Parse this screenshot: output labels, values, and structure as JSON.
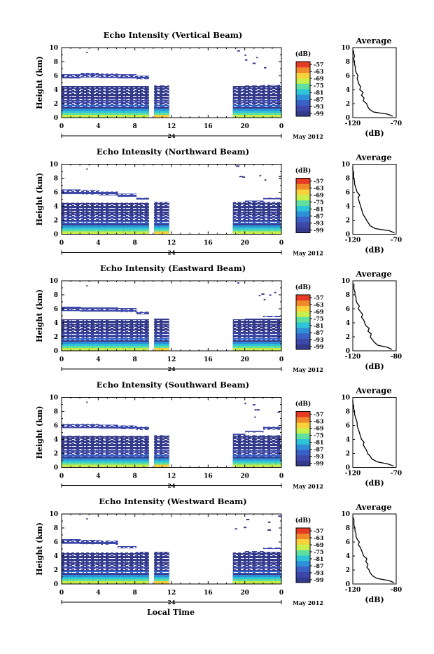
{
  "figure": {
    "xlabel": "Local Time",
    "date_label": "May 2012",
    "day_marker": "24",
    "avg_title": "Average",
    "avg_xlabel": "(dB)",
    "cb_unit": "(dB)",
    "colors": {
      "low": "#3a3f9e",
      "scale": [
        "#353b8c",
        "#3d48a8",
        "#3a62c6",
        "#2f8fd8",
        "#2ec4d8",
        "#5fe0a0",
        "#c8ef4c",
        "#f7d23a",
        "#f08a2a",
        "#e63b24"
      ]
    }
  },
  "chart_data": [
    {
      "type": "heatmap",
      "title": "Echo Intensity (Vertical Beam)",
      "ylabel": "Height (km)",
      "x_ticks": [
        "0",
        "4",
        "8",
        "12",
        "16",
        "20",
        "0"
      ],
      "y_ticks": [
        "0",
        "2",
        "4",
        "6",
        "8",
        "10"
      ],
      "xlim": [
        0,
        24
      ],
      "ylim": [
        0,
        10
      ],
      "colorbar": [
        "-57",
        "-63",
        "-69",
        "-75",
        "-81",
        "-87",
        "-93",
        "-99"
      ],
      "data_gaps_hours": [
        [
          9.5,
          10.1
        ],
        [
          11.7,
          18.7
        ]
      ],
      "echo_top_km": [
        6.2,
        6.4,
        6.3,
        6.2,
        6.0,
        5.8,
        4.6,
        4.6,
        4.4,
        4.5,
        4.6,
        4.7
      ],
      "average": {
        "xlim": [
          -120,
          -70
        ],
        "x_ticks": [
          "-120",
          "-70"
        ],
        "y_ticks": [
          "0",
          "2",
          "4",
          "6",
          "8",
          "10"
        ],
        "profile_height_km": [
          0.2,
          0.5,
          0.8,
          1.2,
          1.6,
          2.0,
          2.4,
          2.8,
          3.2,
          3.6,
          4.0,
          4.4,
          4.8,
          5.2,
          5.6,
          6.0,
          6.4,
          6.8,
          7.2,
          7.6,
          8.0,
          8.4,
          8.8,
          9.2,
          9.6
        ],
        "profile_db": [
          -74,
          -80,
          -96,
          -101,
          -103,
          -104,
          -108,
          -107,
          -110,
          -108,
          -112,
          -111,
          -113,
          -114,
          -115,
          -114,
          -116,
          -117,
          -117,
          -118,
          -118,
          -119,
          -118,
          -119,
          -119
        ]
      }
    },
    {
      "type": "heatmap",
      "title": "Echo Intensity (Northward Beam)",
      "ylabel": "Height (km)",
      "x_ticks": [
        "0",
        "4",
        "8",
        "12",
        "16",
        "20",
        "0"
      ],
      "y_ticks": [
        "0",
        "2",
        "4",
        "6",
        "8",
        "10"
      ],
      "xlim": [
        0,
        24
      ],
      "ylim": [
        0,
        10
      ],
      "colorbar": [
        "-57",
        "-63",
        "-69",
        "-75",
        "-81",
        "-87",
        "-93",
        "-99"
      ],
      "data_gaps_hours": [
        [
          9.5,
          10.1
        ],
        [
          11.7,
          18.7
        ]
      ],
      "echo_top_km": [
        6.4,
        6.3,
        6.1,
        5.8,
        5.2,
        4.8,
        4.6,
        4.5,
        4.4,
        4.6,
        4.8,
        5.2
      ],
      "average": {
        "xlim": [
          -120,
          -70
        ],
        "x_ticks": [
          "-120",
          "-70"
        ],
        "y_ticks": [
          "0",
          "2",
          "4",
          "6",
          "8",
          "10"
        ],
        "profile_height_km": [
          0.2,
          0.5,
          0.8,
          1.2,
          1.6,
          2.0,
          2.4,
          2.8,
          3.2,
          3.6,
          4.0,
          4.4,
          4.8,
          5.2,
          5.6,
          6.0,
          6.4,
          6.8,
          7.2,
          7.6,
          8.0,
          8.4,
          8.8,
          9.2,
          9.6
        ],
        "profile_db": [
          -72,
          -78,
          -94,
          -100,
          -102,
          -104,
          -106,
          -108,
          -109,
          -110,
          -111,
          -112,
          -113,
          -114,
          -112,
          -115,
          -116,
          -117,
          -118,
          -118,
          -119,
          -119,
          -119,
          -120,
          -120
        ]
      }
    },
    {
      "type": "heatmap",
      "title": "Echo Intensity (Eastward Beam)",
      "ylabel": "Height (km)",
      "x_ticks": [
        "0",
        "4",
        "8",
        "12",
        "16",
        "20",
        "0"
      ],
      "y_ticks": [
        "0",
        "2",
        "4",
        "6",
        "8",
        "10"
      ],
      "xlim": [
        0,
        24
      ],
      "ylim": [
        0,
        10
      ],
      "colorbar": [
        "-57",
        "-63",
        "-69",
        "-75",
        "-81",
        "-87",
        "-93",
        "-99"
      ],
      "data_gaps_hours": [
        [
          9.5,
          10.1
        ],
        [
          11.7,
          18.7
        ]
      ],
      "echo_top_km": [
        6.3,
        6.2,
        6.2,
        6.1,
        5.6,
        4.6,
        4.6,
        4.4,
        4.3,
        4.5,
        4.6,
        5.0
      ],
      "average": {
        "xlim": [
          -120,
          -80
        ],
        "x_ticks": [
          "-120",
          "-80"
        ],
        "y_ticks": [
          "0",
          "2",
          "4",
          "6",
          "8",
          "10"
        ],
        "profile_height_km": [
          0.2,
          0.5,
          0.8,
          1.2,
          1.6,
          2.0,
          2.4,
          2.8,
          3.2,
          3.6,
          4.0,
          4.4,
          4.8,
          5.2,
          5.6,
          6.0,
          6.4,
          6.8,
          7.2,
          7.6,
          8.0,
          8.4,
          8.8,
          9.2,
          9.6
        ],
        "profile_db": [
          -84,
          -88,
          -97,
          -100,
          -102,
          -104,
          -103,
          -106,
          -105,
          -108,
          -109,
          -110,
          -112,
          -111,
          -113,
          -115,
          -114,
          -116,
          -117,
          -117,
          -118,
          -118,
          -119,
          -119,
          -119
        ]
      }
    },
    {
      "type": "heatmap",
      "title": "Echo Intensity (Southward Beam)",
      "ylabel": "Height (km)",
      "x_ticks": [
        "0",
        "4",
        "8",
        "12",
        "16",
        "20",
        "0"
      ],
      "y_ticks": [
        "0",
        "2",
        "4",
        "6",
        "8",
        "10"
      ],
      "xlim": [
        0,
        24
      ],
      "ylim": [
        0,
        10
      ],
      "colorbar": [
        "-57",
        "-63",
        "-69",
        "-75",
        "-81",
        "-87",
        "-93",
        "-99"
      ],
      "data_gaps_hours": [
        [
          9.5,
          10.1
        ],
        [
          11.7,
          18.7
        ]
      ],
      "echo_top_km": [
        6.2,
        6.2,
        6.1,
        6.0,
        5.8,
        5.0,
        4.6,
        4.5,
        4.4,
        4.8,
        5.2,
        5.8
      ],
      "average": {
        "xlim": [
          -120,
          -70
        ],
        "x_ticks": [
          "-120",
          "-70"
        ],
        "y_ticks": [
          "0",
          "2",
          "4",
          "6",
          "8",
          "10"
        ],
        "profile_height_km": [
          0.2,
          0.5,
          0.8,
          1.2,
          1.6,
          2.0,
          2.4,
          2.8,
          3.2,
          3.6,
          4.0,
          4.4,
          4.8,
          5.2,
          5.6,
          6.0,
          6.4,
          6.8,
          7.2,
          7.6,
          8.0,
          8.4,
          8.8,
          9.2,
          9.6
        ],
        "profile_db": [
          -73,
          -80,
          -92,
          -98,
          -100,
          -103,
          -104,
          -106,
          -108,
          -107,
          -110,
          -111,
          -112,
          -113,
          -114,
          -115,
          -115,
          -116,
          -117,
          -118,
          -118,
          -119,
          -119,
          -120,
          -120
        ]
      }
    },
    {
      "type": "heatmap",
      "title": "Echo Intensity (Westward Beam)",
      "ylabel": "Height (km)",
      "x_ticks": [
        "0",
        "4",
        "8",
        "12",
        "16",
        "20",
        "0"
      ],
      "y_ticks": [
        "0",
        "2",
        "4",
        "6",
        "8",
        "10"
      ],
      "xlim": [
        0,
        24
      ],
      "ylim": [
        0,
        10
      ],
      "colorbar": [
        "-57",
        "-63",
        "-69",
        "-75",
        "-81",
        "-87",
        "-93",
        "-99"
      ],
      "data_gaps_hours": [
        [
          9.5,
          10.1
        ],
        [
          11.7,
          18.7
        ]
      ],
      "echo_top_km": [
        6.4,
        6.3,
        6.2,
        5.4,
        4.6,
        4.5,
        4.5,
        4.4,
        4.3,
        4.5,
        4.7,
        5.2
      ],
      "average": {
        "xlim": [
          -120,
          -80
        ],
        "x_ticks": [
          "-120",
          "-80"
        ],
        "y_ticks": [
          "0",
          "2",
          "4",
          "6",
          "8",
          "10"
        ],
        "profile_height_km": [
          0.2,
          0.5,
          0.8,
          1.2,
          1.6,
          2.0,
          2.4,
          2.8,
          3.2,
          3.6,
          4.0,
          4.4,
          4.8,
          5.2,
          5.6,
          6.0,
          6.4,
          6.8,
          7.2,
          7.6,
          8.0,
          8.4,
          8.8,
          9.2,
          9.6
        ],
        "profile_db": [
          -82,
          -87,
          -98,
          -102,
          -104,
          -105,
          -107,
          -106,
          -108,
          -107,
          -110,
          -111,
          -112,
          -113,
          -115,
          -114,
          -116,
          -117,
          -117,
          -118,
          -118,
          -119,
          -119,
          -119,
          -120
        ]
      }
    }
  ]
}
